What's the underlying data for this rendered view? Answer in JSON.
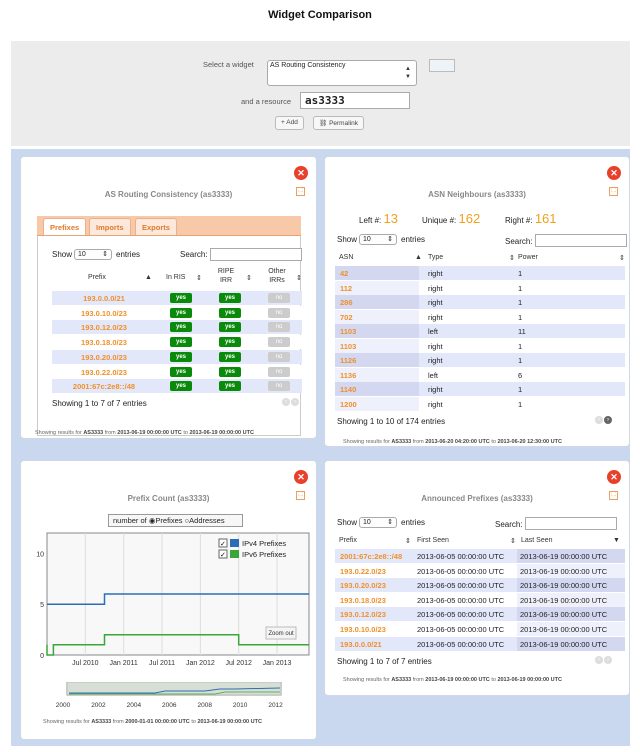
{
  "page_title": "Widget Comparison",
  "selector": {
    "widget_label": "Select a widget",
    "widget_value": "AS Routing Consistency",
    "resource_label": "and a resource",
    "resource_value": "as3333",
    "add_label": "Add",
    "permalink_label": "Permalink"
  },
  "routing": {
    "title": "AS Routing Consistency (as3333)",
    "tabs": [
      "Prefixes",
      "Imports",
      "Exports"
    ],
    "show_label": "Show",
    "show_value": "10",
    "entries_label": "entries",
    "search_label": "Search:",
    "headers": [
      "Prefix",
      "In RIS",
      "RIPE IRR",
      "Other IRRs"
    ],
    "rows": [
      {
        "prefix": "193.0.0.0/21",
        "ris": "yes",
        "ripe": "yes",
        "other": "no"
      },
      {
        "prefix": "193.0.10.0/23",
        "ris": "yes",
        "ripe": "yes",
        "other": "no"
      },
      {
        "prefix": "193.0.12.0/23",
        "ris": "yes",
        "ripe": "yes",
        "other": "no"
      },
      {
        "prefix": "193.0.18.0/23",
        "ris": "yes",
        "ripe": "yes",
        "other": "no"
      },
      {
        "prefix": "193.0.20.0/23",
        "ris": "yes",
        "ripe": "yes",
        "other": "no"
      },
      {
        "prefix": "193.0.22.0/23",
        "ris": "yes",
        "ripe": "yes",
        "other": "no"
      },
      {
        "prefix": "2001:67c:2e8::/48",
        "ris": "yes",
        "ripe": "yes",
        "other": "no"
      }
    ],
    "info": "Showing 1 to 7 of 7 entries",
    "footer_pre": "Showing results for",
    "footer_as": "AS3333",
    "footer_from": "from",
    "footer_start": "2013-06-19 00:00:00 UTC",
    "footer_to": "to",
    "footer_end": "2013-06-19 00:00:00 UTC"
  },
  "neighbours": {
    "title": "ASN Neighbours (as3333)",
    "left_label": "Left #:",
    "left_value": "13",
    "unique_label": "Unique #:",
    "unique_value": "162",
    "right_label": "Right #:",
    "right_value": "161",
    "show_label": "Show",
    "show_value": "10",
    "entries_label": "entries",
    "search_label": "Search:",
    "headers": [
      "ASN",
      "Type",
      "Power"
    ],
    "rows": [
      {
        "asn": "42",
        "type": "right",
        "power": "1"
      },
      {
        "asn": "112",
        "type": "right",
        "power": "1"
      },
      {
        "asn": "286",
        "type": "right",
        "power": "1"
      },
      {
        "asn": "702",
        "type": "right",
        "power": "1"
      },
      {
        "asn": "1103",
        "type": "left",
        "power": "11"
      },
      {
        "asn": "1103",
        "type": "right",
        "power": "1"
      },
      {
        "asn": "1126",
        "type": "right",
        "power": "1"
      },
      {
        "asn": "1136",
        "type": "left",
        "power": "6"
      },
      {
        "asn": "1140",
        "type": "right",
        "power": "1"
      },
      {
        "asn": "1200",
        "type": "right",
        "power": "1"
      }
    ],
    "info": "Showing 1 to 10 of 174 entries",
    "footer_pre": "Showing results for",
    "footer_as": "AS3333",
    "footer_from": "from",
    "footer_start": "2013-06-20 04:20:00 UTC",
    "footer_to": "to",
    "footer_end": "2013-06-20 12:30:00 UTC"
  },
  "prefix_count": {
    "title": "Prefix Count (as3333)",
    "toggle_label": "number of",
    "opt_prefixes": "Prefixes",
    "opt_addresses": "Addresses",
    "zoom_out": "Zoom out",
    "footer_pre": "Showing results for",
    "footer_as": "AS3333",
    "footer_from": "from",
    "footer_start": "2000-01-01 00:00:00 UTC",
    "footer_to": "to",
    "footer_end": "2013-06-19 00:00:00 UTC",
    "nav_ticks": [
      "2000",
      "2002",
      "2004",
      "2006",
      "2008",
      "2010",
      "2012"
    ]
  },
  "chart_data": {
    "type": "line",
    "x_ticks": [
      "Jul 2010",
      "Jan 2011",
      "Jul 2011",
      "Jan 2012",
      "Jul 2012",
      "Jan 2013"
    ],
    "y_ticks": [
      "0",
      "5",
      "10"
    ],
    "ylim": [
      0,
      12
    ],
    "xlim": [
      "2010-01",
      "2013-06"
    ],
    "legend_position": "top-right",
    "series": [
      {
        "name": "IPv4 Prefixes",
        "color": "#2e6db5",
        "points": [
          [
            "2010-01",
            5
          ],
          [
            "2010-10",
            5
          ],
          [
            "2010-10",
            6
          ],
          [
            "2013-06",
            6
          ]
        ]
      },
      {
        "name": "IPv6 Prefixes",
        "color": "#3aa63a",
        "points": [
          [
            "2010-01",
            1
          ],
          [
            "2010-01",
            0
          ],
          [
            "2010-02",
            0
          ],
          [
            "2010-02",
            1
          ],
          [
            "2010-10",
            1
          ],
          [
            "2010-10",
            2
          ],
          [
            "2012-07",
            2
          ],
          [
            "2012-07",
            1
          ],
          [
            "2013-06",
            1
          ]
        ]
      }
    ]
  },
  "announced": {
    "title": "Announced Prefixes (as3333)",
    "show_label": "Show",
    "show_value": "10",
    "entries_label": "entries",
    "search_label": "Search:",
    "headers": [
      "Prefix",
      "First Seen",
      "Last Seen"
    ],
    "rows": [
      {
        "prefix": "2001:67c:2e8::/48",
        "first": "2013-06-05 00:00:00 UTC",
        "last": "2013-06-19 00:00:00 UTC"
      },
      {
        "prefix": "193.0.22.0/23",
        "first": "2013-06-05 00:00:00 UTC",
        "last": "2013-06-19 00:00:00 UTC"
      },
      {
        "prefix": "193.0.20.0/23",
        "first": "2013-06-05 00:00:00 UTC",
        "last": "2013-06-19 00:00:00 UTC"
      },
      {
        "prefix": "193.0.18.0/23",
        "first": "2013-06-05 00:00:00 UTC",
        "last": "2013-06-19 00:00:00 UTC"
      },
      {
        "prefix": "193.0.12.0/23",
        "first": "2013-06-05 00:00:00 UTC",
        "last": "2013-06-19 00:00:00 UTC"
      },
      {
        "prefix": "193.0.10.0/23",
        "first": "2013-06-05 00:00:00 UTC",
        "last": "2013-06-19 00:00:00 UTC"
      },
      {
        "prefix": "193.0.0.0/21",
        "first": "2013-06-05 00:00:00 UTC",
        "last": "2013-06-19 00:00:00 UTC"
      }
    ],
    "info": "Showing 1 to 7 of 7 entries",
    "footer_pre": "Showing results for",
    "footer_as": "AS3333",
    "footer_from": "from",
    "footer_start": "2013-06-19 00:00:00 UTC",
    "footer_to": "to",
    "footer_end": "2013-06-19 00:00:00 UTC"
  }
}
